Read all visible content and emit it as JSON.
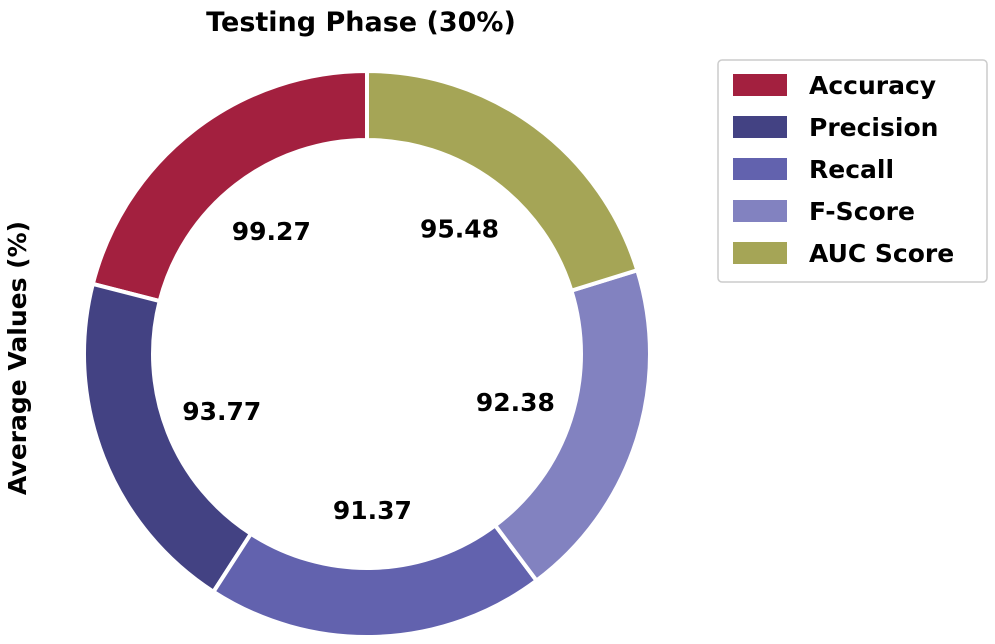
{
  "chart_data": {
    "type": "pie",
    "variant": "donut",
    "title": "Testing Phase (30%)",
    "ylabel": "Average Values (%)",
    "categories": [
      "Accuracy",
      "Precision",
      "Recall",
      "F-Score",
      "AUC Score"
    ],
    "values": [
      99.27,
      93.77,
      91.37,
      92.38,
      95.48
    ],
    "value_labels": [
      "99.27",
      "93.77",
      "91.37",
      "92.38",
      "95.48"
    ],
    "colors": [
      "#a3203f",
      "#434283",
      "#6262ae",
      "#8282c0",
      "#a5a556"
    ],
    "start_angle_deg": 90,
    "direction": "counterclockwise",
    "legend": {
      "placement": "upper-right-outside",
      "entries": [
        "Accuracy",
        "Precision",
        "Recall",
        "F-Score",
        "AUC Score"
      ]
    },
    "grid": false
  }
}
